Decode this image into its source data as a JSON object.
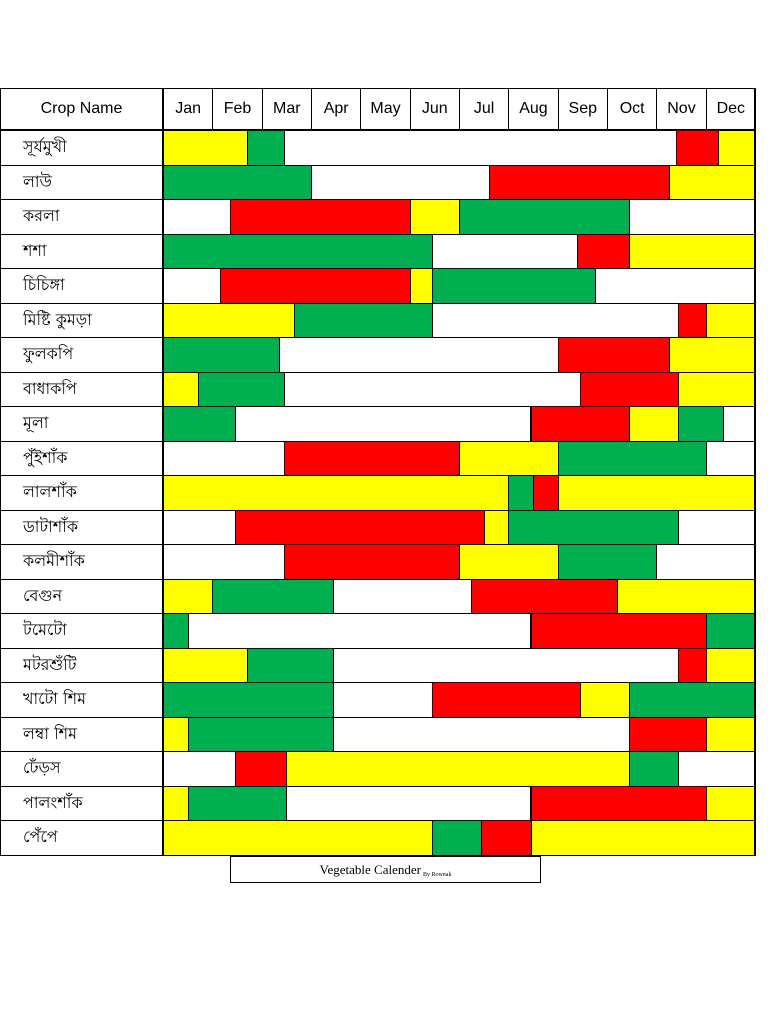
{
  "header": {
    "crop_col": "Crop Name",
    "months": [
      "Jan",
      "Feb",
      "Mar",
      "Apr",
      "May",
      "Jun",
      "Jul",
      "Aug",
      "Sep",
      "Oct",
      "Nov",
      "Dec"
    ]
  },
  "colors": {
    "G": "#00b050",
    "R": "#ff0000",
    "Y": "#ffff00",
    "W": "#ffffff"
  },
  "legend_note": "Colors mark crop calendar phases; fractions are month positions (0 = start of Jan, 12 = end of Dec)",
  "crops": [
    {
      "name": "সূর্যমুখী",
      "segments": [
        [
          "Y",
          0,
          1.7
        ],
        [
          "G",
          1.7,
          2.45
        ],
        [
          "W",
          2.45,
          10.4
        ],
        [
          "R",
          10.4,
          11.25
        ],
        [
          "Y",
          11.25,
          12
        ]
      ]
    },
    {
      "name": "লাউ",
      "segments": [
        [
          "G",
          0,
          3
        ],
        [
          "W",
          3,
          6.6
        ],
        [
          "R",
          6.6,
          10.25
        ],
        [
          "Y",
          10.25,
          12
        ]
      ]
    },
    {
      "name": "করলা",
      "segments": [
        [
          "W",
          0,
          1.35
        ],
        [
          "R",
          1.35,
          5
        ],
        [
          "Y",
          5,
          6
        ],
        [
          "G",
          6,
          9.45
        ],
        [
          "W",
          9.45,
          12
        ]
      ]
    },
    {
      "name": "শশা",
      "segments": [
        [
          "G",
          0,
          5.45
        ],
        [
          "W",
          5.45,
          8.4
        ],
        [
          "R",
          8.4,
          9.45
        ],
        [
          "Y",
          9.45,
          12
        ]
      ]
    },
    {
      "name": "চিচিঙ্গা",
      "segments": [
        [
          "W",
          0,
          1.15
        ],
        [
          "R",
          1.15,
          5
        ],
        [
          "Y",
          5,
          5.45
        ],
        [
          "G",
          5.45,
          8.75
        ],
        [
          "W",
          8.75,
          12
        ]
      ]
    },
    {
      "name": "মিষ্টি কুমড়া",
      "segments": [
        [
          "Y",
          0,
          2.65
        ],
        [
          "G",
          2.65,
          5.45
        ],
        [
          "W",
          5.45,
          10.45
        ],
        [
          "R",
          10.45,
          11
        ],
        [
          "Y",
          11,
          12
        ]
      ]
    },
    {
      "name": "ফুলকপি",
      "segments": [
        [
          "G",
          0,
          2.35
        ],
        [
          "W",
          2.35,
          8
        ],
        [
          "R",
          8,
          10.25
        ],
        [
          "Y",
          10.25,
          12
        ]
      ]
    },
    {
      "name": "বাধাকপি",
      "segments": [
        [
          "Y",
          0,
          0.7
        ],
        [
          "G",
          0.7,
          2.45
        ],
        [
          "W",
          2.45,
          8.45
        ],
        [
          "R",
          8.45,
          10.45
        ],
        [
          "Y",
          10.45,
          12
        ]
      ]
    },
    {
      "name": "মূলা",
      "segments": [
        [
          "G",
          0,
          1.45
        ],
        [
          "W",
          1.45,
          7.45
        ],
        [
          "R",
          7.45,
          9.45
        ],
        [
          "Y",
          9.45,
          10.45
        ],
        [
          "G",
          10.45,
          11.35
        ],
        [
          "W",
          11.35,
          12
        ]
      ]
    },
    {
      "name": "পুঁইশাঁক",
      "segments": [
        [
          "W",
          0,
          2.45
        ],
        [
          "R",
          2.45,
          6
        ],
        [
          "Y",
          6,
          8
        ],
        [
          "G",
          8,
          11
        ],
        [
          "W",
          11,
          12
        ]
      ]
    },
    {
      "name": "লালশাঁক",
      "segments": [
        [
          "Y",
          0,
          7
        ],
        [
          "G",
          7,
          7.5
        ],
        [
          "R",
          7.5,
          8
        ],
        [
          "Y",
          8,
          12
        ]
      ]
    },
    {
      "name": "ডাটাশাঁক",
      "segments": [
        [
          "W",
          0,
          1.45
        ],
        [
          "R",
          1.45,
          6.5
        ],
        [
          "Y",
          6.5,
          7
        ],
        [
          "G",
          7,
          10.45
        ],
        [
          "W",
          10.45,
          12
        ]
      ]
    },
    {
      "name": "কলমীশাঁক",
      "segments": [
        [
          "W",
          0,
          2.45
        ],
        [
          "R",
          2.45,
          6
        ],
        [
          "Y",
          6,
          8
        ],
        [
          "G",
          8,
          10
        ],
        [
          "W",
          10,
          12
        ]
      ]
    },
    {
      "name": "বেগুন",
      "segments": [
        [
          "Y",
          0,
          1
        ],
        [
          "G",
          1,
          3.45
        ],
        [
          "W",
          3.45,
          6.25
        ],
        [
          "R",
          6.25,
          9.2
        ],
        [
          "Y",
          9.2,
          12
        ]
      ]
    },
    {
      "name": "টমেটো",
      "segments": [
        [
          "G",
          0,
          0.5
        ],
        [
          "W",
          0.5,
          7.45
        ],
        [
          "R",
          7.45,
          11
        ],
        [
          "G",
          11,
          12
        ]
      ]
    },
    {
      "name": "মটরশুঁটি",
      "segments": [
        [
          "Y",
          0,
          1.7
        ],
        [
          "G",
          1.7,
          3.45
        ],
        [
          "W",
          3.45,
          10.45
        ],
        [
          "R",
          10.45,
          11
        ],
        [
          "Y",
          11,
          12
        ]
      ]
    },
    {
      "name": "খাটো শিম",
      "segments": [
        [
          "G",
          0,
          3.45
        ],
        [
          "W",
          3.45,
          5.45
        ],
        [
          "R",
          5.45,
          8.45
        ],
        [
          "Y",
          8.45,
          9.45
        ],
        [
          "G",
          9.45,
          12
        ]
      ]
    },
    {
      "name": "লম্বা শিম",
      "segments": [
        [
          "Y",
          0,
          0.5
        ],
        [
          "G",
          0.5,
          3.45
        ],
        [
          "W",
          3.45,
          9.45
        ],
        [
          "R",
          9.45,
          11
        ],
        [
          "Y",
          11,
          12
        ]
      ]
    },
    {
      "name": "ঢেঁড়স",
      "segments": [
        [
          "W",
          0,
          1.45
        ],
        [
          "R",
          1.45,
          2.5
        ],
        [
          "Y",
          2.5,
          9.45
        ],
        [
          "G",
          9.45,
          10.45
        ],
        [
          "W",
          10.45,
          12
        ]
      ]
    },
    {
      "name": "পালংশাঁক",
      "segments": [
        [
          "Y",
          0,
          0.5
        ],
        [
          "G",
          0.5,
          2.5
        ],
        [
          "W",
          2.5,
          7.45
        ],
        [
          "R",
          7.45,
          11
        ],
        [
          "Y",
          11,
          12
        ]
      ]
    },
    {
      "name": "পেঁপে",
      "segments": [
        [
          "Y",
          0,
          5.45
        ],
        [
          "G",
          5.45,
          6.45
        ],
        [
          "R",
          6.45,
          7.45
        ],
        [
          "Y",
          7.45,
          12
        ]
      ]
    }
  ],
  "footer": {
    "title": "Vegetable Calender",
    "byline": "By Rownak"
  }
}
